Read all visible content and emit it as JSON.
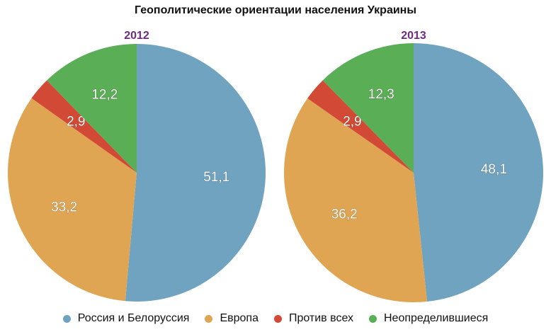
{
  "title": "Геополитические ориентации населения Украины",
  "colors": {
    "russia": "#6fa3c0",
    "europe": "#e0a553",
    "against": "#d24a35",
    "undecided": "#5aae55",
    "year": "#6f2a86"
  },
  "legend": [
    {
      "label": "Россия и Белоруссия",
      "color": "#6fa3c0"
    },
    {
      "label": "Европа",
      "color": "#e0a553"
    },
    {
      "label": "Против всех",
      "color": "#d24a35"
    },
    {
      "label": "Неопределившиеся",
      "color": "#5aae55"
    }
  ],
  "charts": [
    {
      "year": "2012",
      "labels": [
        "51,1",
        "33,2",
        "2,9",
        "12,2"
      ]
    },
    {
      "year": "2013",
      "labels": [
        "48,1",
        "36,2",
        "2,9",
        "12,3"
      ]
    }
  ],
  "chart_data": [
    {
      "type": "pie",
      "title": "2012",
      "suptitle": "Геополитические ориентации населения Украины",
      "categories": [
        "Россия и Белоруссия",
        "Европа",
        "Против всех",
        "Неопределившиеся"
      ],
      "values": [
        51.1,
        33.2,
        2.9,
        12.2
      ],
      "colors": [
        "#6fa3c0",
        "#e0a553",
        "#d24a35",
        "#5aae55"
      ],
      "start_angle": "12 o'clock",
      "direction": "clockwise",
      "legend_position": "bottom"
    },
    {
      "type": "pie",
      "title": "2013",
      "suptitle": "Геополитические ориентации населения Украины",
      "categories": [
        "Россия и Белоруссия",
        "Европа",
        "Против всех",
        "Неопределившиеся"
      ],
      "values": [
        48.1,
        36.2,
        2.9,
        12.3
      ],
      "colors": [
        "#6fa3c0",
        "#e0a553",
        "#d24a35",
        "#5aae55"
      ],
      "start_angle": "12 o'clock",
      "direction": "clockwise",
      "legend_position": "bottom"
    }
  ]
}
